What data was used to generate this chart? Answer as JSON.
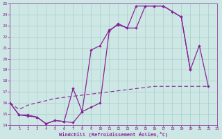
{
  "xlabel": "Windchill (Refroidissement éolien,°C)",
  "background_color": "#cde8e4",
  "grid_color": "#aacccc",
  "line_color": "#882299",
  "xlim": [
    0,
    23
  ],
  "ylim": [
    14,
    25
  ],
  "yticks": [
    14,
    15,
    16,
    17,
    18,
    19,
    20,
    21,
    22,
    23,
    24,
    25
  ],
  "xticks": [
    0,
    1,
    2,
    3,
    4,
    5,
    6,
    7,
    8,
    9,
    10,
    11,
    12,
    13,
    14,
    15,
    16,
    17,
    18,
    19,
    20,
    21,
    22,
    23
  ],
  "curve1_x": [
    0,
    1,
    2,
    3,
    4,
    5,
    6,
    7,
    8,
    9,
    10,
    11,
    12,
    13,
    14,
    15,
    16,
    17,
    18,
    19,
    20,
    21,
    22
  ],
  "curve1_y": [
    16.0,
    14.9,
    14.9,
    14.7,
    14.1,
    14.4,
    14.3,
    17.3,
    15.2,
    15.6,
    16.0,
    22.5,
    23.2,
    22.8,
    22.8,
    24.8,
    24.8,
    24.8,
    24.3,
    23.8,
    19.0,
    21.2,
    17.5
  ],
  "curve2_x": [
    0,
    1,
    2,
    3,
    4,
    5,
    6,
    7,
    8,
    9,
    10,
    11,
    12,
    13,
    14,
    15,
    16,
    17,
    18,
    19,
    20
  ],
  "curve2_y": [
    16.0,
    14.9,
    14.8,
    14.7,
    14.1,
    14.4,
    14.3,
    14.2,
    15.2,
    20.8,
    21.2,
    22.6,
    23.1,
    22.8,
    24.8,
    24.8,
    24.8,
    24.8,
    24.3,
    23.8,
    19.0
  ],
  "curve3_x": [
    0,
    1,
    2,
    3,
    4,
    5,
    6,
    7,
    8,
    9,
    10,
    11,
    12,
    13,
    14,
    15,
    16,
    17,
    18,
    19,
    20,
    21,
    22
  ],
  "curve3_y": [
    16.0,
    15.4,
    15.8,
    16.0,
    16.2,
    16.4,
    16.5,
    16.6,
    16.7,
    16.8,
    16.9,
    17.0,
    17.1,
    17.2,
    17.3,
    17.4,
    17.5,
    17.5,
    17.5,
    17.5,
    17.5,
    17.5,
    17.5
  ]
}
